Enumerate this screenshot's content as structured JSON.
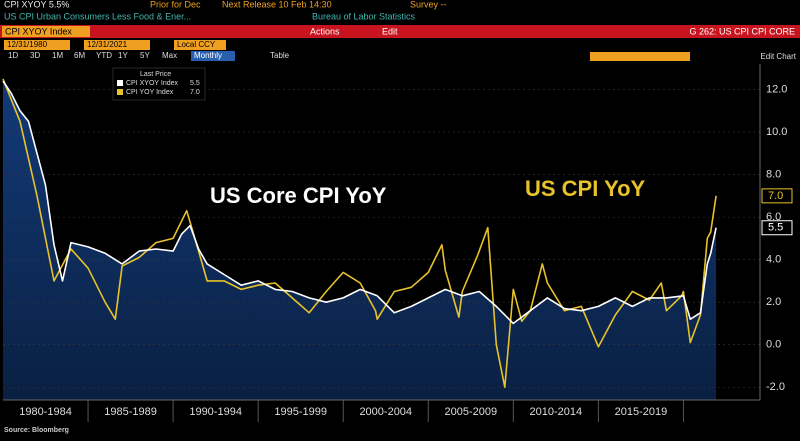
{
  "header": {
    "ticker_line": "CPI XYOY  5.5%",
    "prior": "Prior for Dec",
    "next_release": "Next Release 10 Feb 14:30",
    "survey": "Survey --",
    "description": "US CPI Urban Consumers Less Food & Ener...",
    "source_agency": "Bureau of Labor Statistics",
    "security": "CPI XYOY Index",
    "actions": "Actions",
    "edit": "Edit",
    "function": "G 262: US CPI CPI CORE",
    "start_date": "12/31/1980",
    "end_date": "12/31/2021",
    "currency": "Local CCY",
    "periods": [
      "1D",
      "3D",
      "1M",
      "6M",
      "YTD",
      "1Y",
      "5Y",
      "Max"
    ],
    "frequency": "Monthly",
    "table": "Table",
    "edit_chart": "Edit Chart"
  },
  "chart_data": {
    "type": "line",
    "legend_title": "Last Price",
    "annotations": [
      {
        "text": "US Core CPI YoY",
        "color": "#ffffff"
      },
      {
        "text": "US CPI YoY",
        "color": "#e8c22a"
      }
    ],
    "xlim": [
      1980,
      2024.5
    ],
    "xticks": [
      {
        "value": 1982.5,
        "label": "1980-1984"
      },
      {
        "value": 1987.5,
        "label": "1985-1989"
      },
      {
        "value": 1992.5,
        "label": "1990-1994"
      },
      {
        "value": 1997.5,
        "label": "1995-1999"
      },
      {
        "value": 2002.5,
        "label": "2000-2004"
      },
      {
        "value": 2007.5,
        "label": "2005-2009"
      },
      {
        "value": 2012.5,
        "label": "2010-2014"
      },
      {
        "value": 2017.5,
        "label": "2015-2019"
      }
    ],
    "ylim": [
      -2.6,
      13.2
    ],
    "yticks": [
      {
        "value": 12,
        "label": "12.0"
      },
      {
        "value": 10,
        "label": "10.0"
      },
      {
        "value": 8,
        "label": "8.0"
      },
      {
        "value": 6,
        "label": "6.0"
      },
      {
        "value": 4,
        "label": "4.0"
      },
      {
        "value": 2,
        "label": "2.0"
      },
      {
        "value": 0,
        "label": "0.0"
      },
      {
        "value": -2,
        "label": "-2.0"
      }
    ],
    "series": [
      {
        "name": "CPI XYOY Index",
        "color": "#ffffff",
        "area_color": "#123a78",
        "last_label": "5.5",
        "x": [
          1980,
          1980.5,
          1981,
          1981.5,
          1982,
          1982.5,
          1983,
          1983.5,
          1984,
          1985,
          1986,
          1987,
          1988,
          1989,
          1990,
          1990.5,
          1991,
          1991.5,
          1992,
          1993,
          1994,
          1995,
          1996,
          1997,
          1998,
          1999,
          2000,
          2001,
          2002,
          2003,
          2004,
          2005,
          2006,
          2007,
          2008,
          2009,
          2010,
          2011,
          2012,
          2013,
          2014,
          2015,
          2016,
          2017,
          2018,
          2019,
          2020,
          2020.4,
          2021,
          2021.4,
          2021.6,
          2021.92
        ],
        "values": [
          12.4,
          11.8,
          11.0,
          10.5,
          9.0,
          7.5,
          4.7,
          3.0,
          4.8,
          4.6,
          4.3,
          3.8,
          4.4,
          4.5,
          4.4,
          5.2,
          5.6,
          4.5,
          3.8,
          3.3,
          2.8,
          3.0,
          2.6,
          2.5,
          2.2,
          2.0,
          2.2,
          2.6,
          2.3,
          1.5,
          1.8,
          2.2,
          2.6,
          2.3,
          2.5,
          1.8,
          1.0,
          1.6,
          2.2,
          1.7,
          1.6,
          1.8,
          2.2,
          1.8,
          2.2,
          2.2,
          2.3,
          1.2,
          1.5,
          3.8,
          4.3,
          5.5
        ]
      },
      {
        "name": "CPI YOY Index",
        "color": "#e8c22a",
        "last_label": "7.0",
        "x": [
          1980,
          1981,
          1982,
          1983,
          1984,
          1985,
          1986,
          1986.6,
          1987,
          1988,
          1989,
          1990,
          1990.8,
          1991.5,
          1992,
          1993,
          1994,
          1995,
          1996,
          1997,
          1998,
          1999,
          2000,
          2001,
          2001.9,
          2002,
          2003,
          2004,
          2005,
          2005.8,
          2006,
          2006.8,
          2007,
          2007.9,
          2008.5,
          2009,
          2009.5,
          2010,
          2010.5,
          2011,
          2011.7,
          2012,
          2013,
          2014,
          2015,
          2016,
          2017,
          2018,
          2018.7,
          2019,
          2019.9,
          2020,
          2020.4,
          2021,
          2021.4,
          2021.6,
          2021.92
        ],
        "values": [
          12.5,
          10.5,
          7.0,
          3.0,
          4.5,
          3.6,
          2.0,
          1.2,
          3.7,
          4.1,
          4.8,
          5.0,
          6.3,
          4.4,
          3.0,
          3.0,
          2.6,
          2.8,
          2.9,
          2.2,
          1.5,
          2.5,
          3.4,
          2.9,
          1.6,
          1.2,
          2.5,
          2.7,
          3.4,
          4.7,
          3.5,
          1.3,
          2.5,
          4.2,
          5.5,
          0.0,
          -2.0,
          2.6,
          1.1,
          1.6,
          3.8,
          2.9,
          1.6,
          1.8,
          -0.1,
          1.4,
          2.5,
          2.1,
          2.9,
          1.6,
          2.3,
          2.5,
          0.1,
          1.4,
          5.0,
          5.3,
          7.0
        ]
      }
    ],
    "source": "Source: Bloomberg"
  }
}
